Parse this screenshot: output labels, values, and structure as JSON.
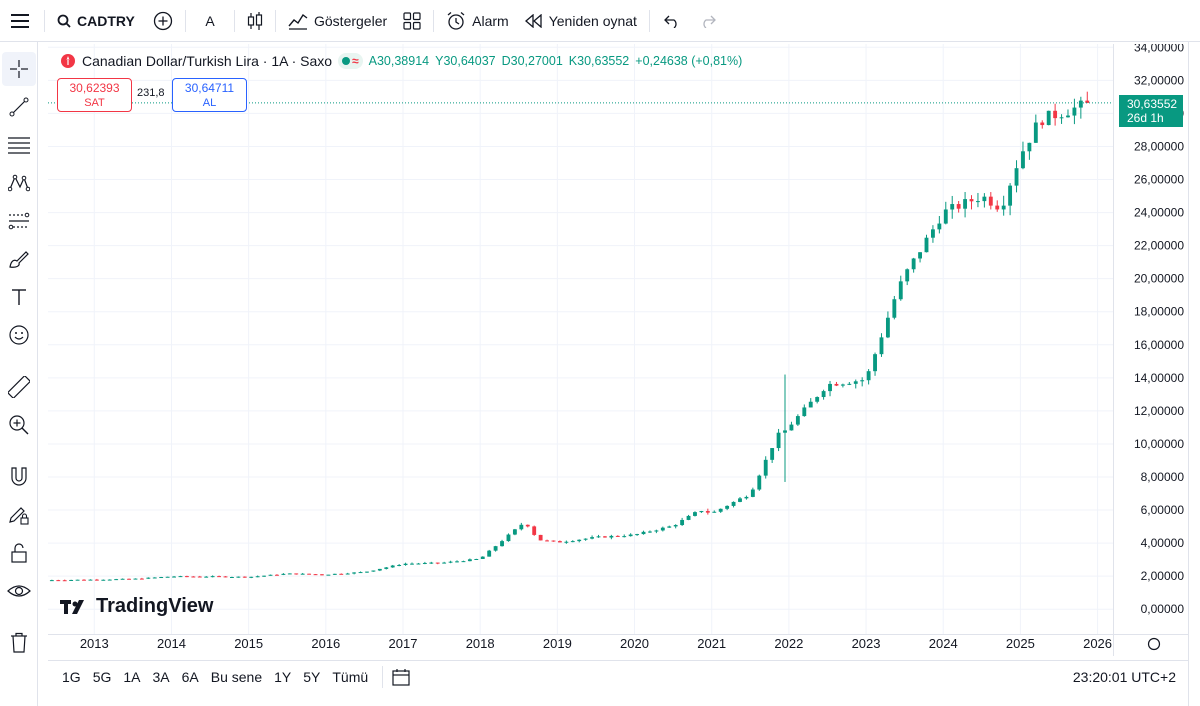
{
  "toolbar": {
    "symbol": "CADTRY",
    "interval": "A",
    "indicators_label": "Göstergeler",
    "alarm_label": "Alarm",
    "replay_label": "Yeniden oynat"
  },
  "legend": {
    "title": "Canadian Dollar/Turkish Lira · 1A · Saxo",
    "open": "A30,38914",
    "high": "Y30,64037",
    "low": "D30,27001",
    "close": "K30,63552",
    "change": "+0,24638 (+0,81%)"
  },
  "trade": {
    "sell_price": "30,62393",
    "sell_label": "SAT",
    "spread": "231,8",
    "buy_price": "30,64711",
    "buy_label": "AL"
  },
  "price_tag": {
    "value": "30,63552",
    "countdown": "26d 1h"
  },
  "watermark": "TradingView",
  "bottom": {
    "ranges": [
      "1G",
      "5G",
      "1A",
      "3A",
      "6A",
      "Bu sene",
      "1Y",
      "5Y",
      "Tümü"
    ],
    "clock": "23:20:01 UTC+2"
  },
  "colors": {
    "up": "#089981",
    "down": "#f23645",
    "grid": "#f0f3fa",
    "axis_text": "#131722"
  },
  "chart_data": {
    "type": "candlestick",
    "title": "Canadian Dollar/Turkish Lira · 1A · Saxo",
    "interval": "1 month",
    "x_tick_labels": [
      "2013",
      "2014",
      "2015",
      "2016",
      "2017",
      "2018",
      "2019",
      "2020",
      "2021",
      "2022",
      "2023",
      "2024",
      "2025",
      "2026"
    ],
    "y_tick_labels": [
      "0,00000",
      "2,00000",
      "4,00000",
      "6,00000",
      "8,00000",
      "10,00000",
      "12,00000",
      "14,00000",
      "16,00000",
      "18,00000",
      "20,00000",
      "22,00000",
      "24,00000",
      "26,00000",
      "28,00000",
      "30,00000",
      "32,00000",
      "34,00000"
    ],
    "ylim": [
      -1.5,
      34.2
    ],
    "start_year": 2012.4,
    "end_year": 2026.2,
    "last_price": 30.63552,
    "approx_monthly_close": [
      {
        "t": 2012.45,
        "v": 1.76
      },
      {
        "t": 2013.0,
        "v": 1.79
      },
      {
        "t": 2013.5,
        "v": 1.83
      },
      {
        "t": 2014.0,
        "v": 1.98
      },
      {
        "t": 2014.5,
        "v": 1.98
      },
      {
        "t": 2015.0,
        "v": 1.95
      },
      {
        "t": 2015.5,
        "v": 2.15
      },
      {
        "t": 2016.0,
        "v": 2.1
      },
      {
        "t": 2016.5,
        "v": 2.25
      },
      {
        "t": 2017.0,
        "v": 2.75
      },
      {
        "t": 2017.5,
        "v": 2.8
      },
      {
        "t": 2018.0,
        "v": 3.05
      },
      {
        "t": 2018.58,
        "v": 5.3
      },
      {
        "t": 2018.75,
        "v": 4.2
      },
      {
        "t": 2019.0,
        "v": 4.05
      },
      {
        "t": 2019.5,
        "v": 4.35
      },
      {
        "t": 2020.0,
        "v": 4.5
      },
      {
        "t": 2020.5,
        "v": 5.05
      },
      {
        "t": 2020.85,
        "v": 6.0
      },
      {
        "t": 2021.0,
        "v": 5.8
      },
      {
        "t": 2021.5,
        "v": 7.0
      },
      {
        "t": 2021.85,
        "v": 10.5
      },
      {
        "t": 2021.95,
        "v": 10.8
      },
      {
        "t": 2022.5,
        "v": 13.6
      },
      {
        "t": 2023.0,
        "v": 13.9
      },
      {
        "t": 2023.4,
        "v": 19.2
      },
      {
        "t": 2023.5,
        "v": 20.2
      },
      {
        "t": 2024.0,
        "v": 24.0
      },
      {
        "t": 2024.5,
        "v": 25.0
      },
      {
        "t": 2024.75,
        "v": 24.3
      },
      {
        "t": 2025.0,
        "v": 27.5
      },
      {
        "t": 2025.25,
        "v": 29.6
      },
      {
        "t": 2025.5,
        "v": 30.0
      },
      {
        "t": 2025.92,
        "v": 30.64
      }
    ]
  }
}
